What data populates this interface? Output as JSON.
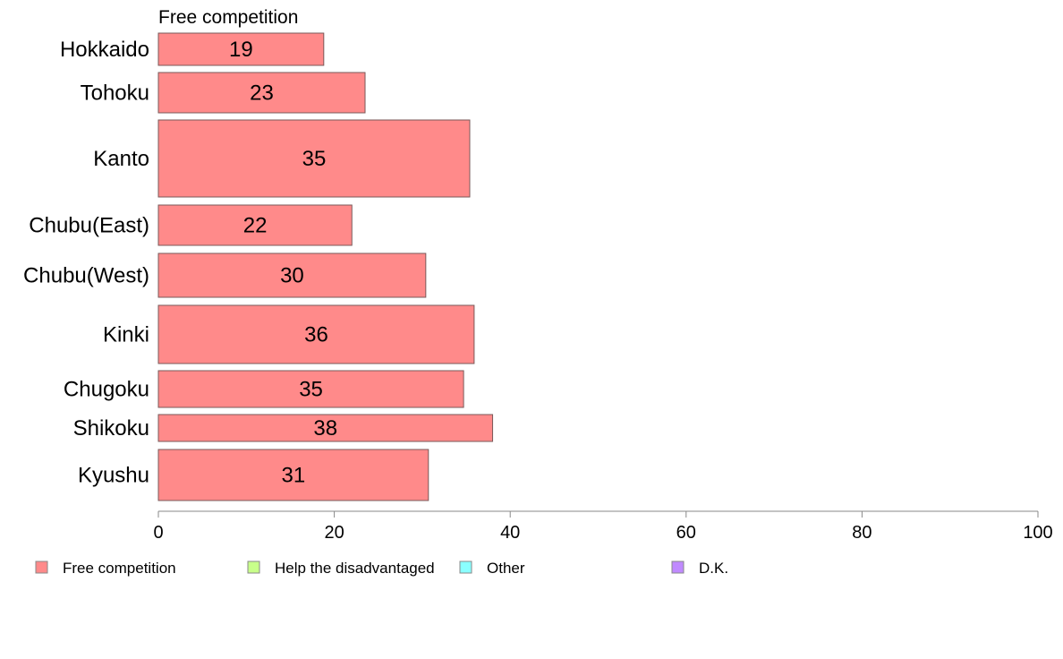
{
  "chart_data": {
    "type": "bar",
    "orientation": "horizontal",
    "title": "Free competition",
    "categories": [
      "Hokkaido",
      "Tohoku",
      "Kanto",
      "Chubu(East)",
      "Chubu(West)",
      "Kinki",
      "Chugoku",
      "Shikoku",
      "Kyushu"
    ],
    "series": [
      {
        "name": "Free competition",
        "values": [
          18.8,
          23.5,
          35.4,
          22.0,
          30.4,
          35.9,
          34.7,
          38.0,
          30.7
        ],
        "labels": [
          "19",
          "23",
          "35",
          "22",
          "30",
          "36",
          "35",
          "38",
          "31"
        ],
        "color": "#ff8a8a"
      }
    ],
    "xlim": [
      0,
      100
    ],
    "xticks": [
      "0",
      "20",
      "40",
      "60",
      "80",
      "100"
    ],
    "xlabel": "",
    "ylabel": "",
    "grid": false,
    "legend": {
      "position": "bottom",
      "items": [
        {
          "label": "Free competition",
          "color": "#ff8a8a"
        },
        {
          "label": "Help the disadvantaged",
          "color": "#c8ff8a"
        },
        {
          "label": "Other",
          "color": "#8affff"
        },
        {
          "label": "D.K.",
          "color": "#c08aff"
        }
      ]
    }
  }
}
